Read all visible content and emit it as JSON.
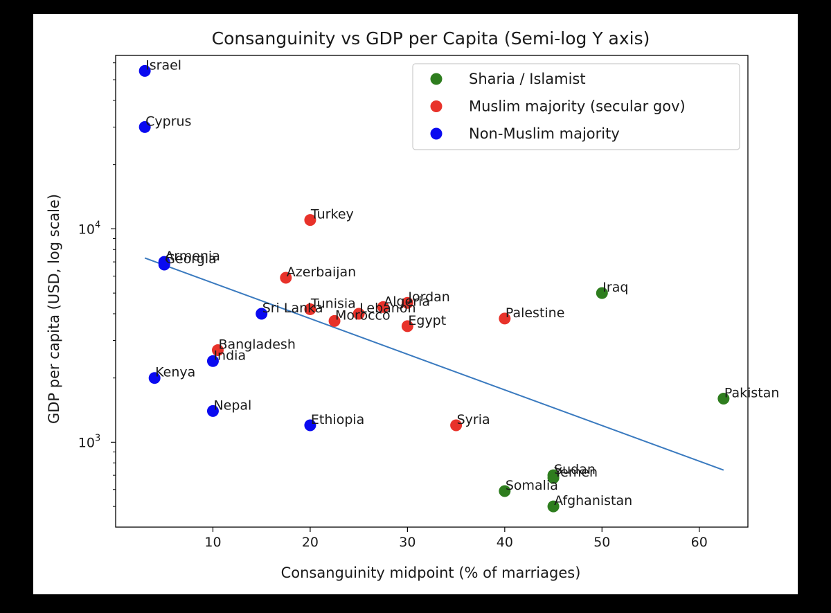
{
  "chart_data": {
    "type": "scatter",
    "title": "Consanguinity vs GDP per Capita (Semi-log Y axis)",
    "xlabel": "Consanguinity midpoint (% of marriages)",
    "ylabel": "GDP per capita (USD, log scale)",
    "xlim": [
      0,
      65
    ],
    "ylim": [
      400,
      65000
    ],
    "yscale": "log",
    "x_ticks": [
      10,
      20,
      30,
      40,
      50,
      60
    ],
    "y_ticks": [
      {
        "value": 1000,
        "base": "10",
        "exp": "3"
      },
      {
        "value": 10000,
        "base": "10",
        "exp": "4"
      }
    ],
    "legend_position": "top-right",
    "series": [
      {
        "name": "Sharia / Islamist",
        "color": "#2e7d1e",
        "points": [
          {
            "label": "Iraq",
            "x": 50,
            "y": 5000
          },
          {
            "label": "Pakistan",
            "x": 62.5,
            "y": 1600
          },
          {
            "label": "Sudan",
            "x": 45,
            "y": 700
          },
          {
            "label": "Yemen",
            "x": 45,
            "y": 680
          },
          {
            "label": "Somalia",
            "x": 40,
            "y": 590
          },
          {
            "label": "Afghanistan",
            "x": 45,
            "y": 500
          }
        ]
      },
      {
        "name": "Muslim majority (secular gov)",
        "color": "#e8322a",
        "points": [
          {
            "label": "Turkey",
            "x": 20,
            "y": 11000
          },
          {
            "label": "Azerbaijan",
            "x": 17.5,
            "y": 5900
          },
          {
            "label": "Jordan",
            "x": 30,
            "y": 4500
          },
          {
            "label": "Algeria",
            "x": 27.5,
            "y": 4300
          },
          {
            "label": "Tunisia",
            "x": 20,
            "y": 4200
          },
          {
            "label": "Lebanon",
            "x": 25,
            "y": 4000
          },
          {
            "label": "Palestine",
            "x": 40,
            "y": 3800
          },
          {
            "label": "Morocco",
            "x": 22.5,
            "y": 3700
          },
          {
            "label": "Egypt",
            "x": 30,
            "y": 3500
          },
          {
            "label": "Bangladesh",
            "x": 10.5,
            "y": 2700
          },
          {
            "label": "Syria",
            "x": 35,
            "y": 1200
          }
        ]
      },
      {
        "name": "Non-Muslim majority",
        "color": "#0a0af0",
        "points": [
          {
            "label": "Israel",
            "x": 3,
            "y": 55000
          },
          {
            "label": "Cyprus",
            "x": 3,
            "y": 30000
          },
          {
            "label": "Armenia",
            "x": 5,
            "y": 7000
          },
          {
            "label": "Georgia",
            "x": 5,
            "y": 6800
          },
          {
            "label": "Sri Lanka",
            "x": 15,
            "y": 4000
          },
          {
            "label": "India",
            "x": 10,
            "y": 2400
          },
          {
            "label": "Kenya",
            "x": 4,
            "y": 2000
          },
          {
            "label": "Nepal",
            "x": 10,
            "y": 1400
          },
          {
            "label": "Ethiopia",
            "x": 20,
            "y": 1200
          }
        ]
      }
    ],
    "trendline": {
      "color": "#3a7abf",
      "x": [
        3,
        62.5
      ],
      "y": [
        7300,
        740
      ]
    }
  }
}
